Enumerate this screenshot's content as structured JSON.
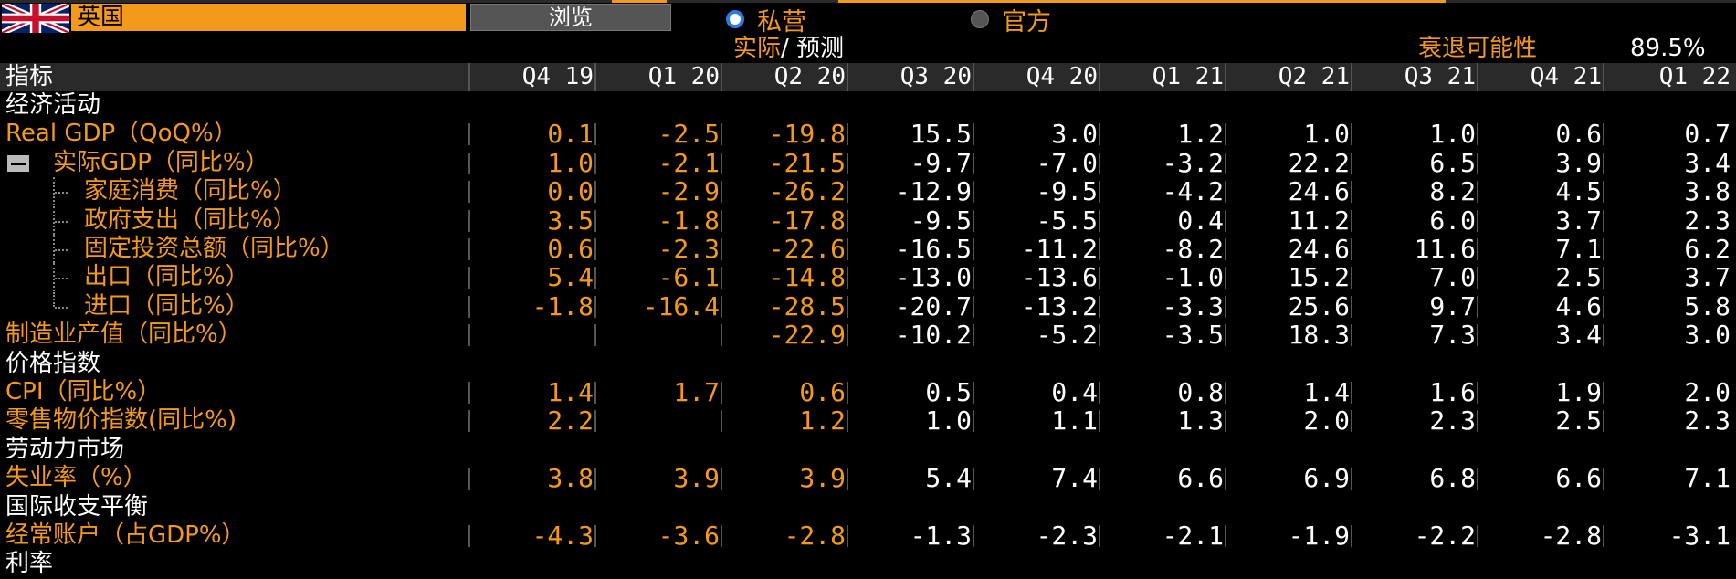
{
  "topbar": {
    "country": "英国",
    "browse_label": "浏览",
    "radio_private": "私营",
    "radio_official": "官方",
    "selected": "私营"
  },
  "subheader": {
    "actual": "实际",
    "slash": "/",
    "forecast": "预测",
    "recession_label": "衰退可能性",
    "recession_value": "89.5%"
  },
  "table": {
    "indicator_header": "指标",
    "columns": [
      "Q4 19",
      "Q1 20",
      "Q2 20",
      "Q3 20",
      "Q4 20",
      "Q1 21",
      "Q2 21",
      "Q3 21",
      "Q4 21",
      "Q1 22"
    ],
    "actual_columns": 3,
    "rows": [
      {
        "type": "section",
        "label": "经济活动"
      },
      {
        "type": "data",
        "label": "Real GDP（QoQ%）",
        "indent": 0,
        "values": [
          "0.1",
          "-2.5",
          "-19.8",
          "15.5",
          "3.0",
          "1.2",
          "1.0",
          "1.0",
          "0.6",
          "0.7"
        ]
      },
      {
        "type": "data",
        "label": "实际GDP（同比%）",
        "indent": 1,
        "collapsible": true,
        "values": [
          "1.0",
          "-2.1",
          "-21.5",
          "-9.7",
          "-7.0",
          "-3.2",
          "22.2",
          "6.5",
          "3.9",
          "3.4"
        ]
      },
      {
        "type": "data",
        "label": "家庭消费（同比%）",
        "indent": 2,
        "values": [
          "0.0",
          "-2.9",
          "-26.2",
          "-12.9",
          "-9.5",
          "-4.2",
          "24.6",
          "8.2",
          "4.5",
          "3.8"
        ]
      },
      {
        "type": "data",
        "label": "政府支出（同比%）",
        "indent": 2,
        "values": [
          "3.5",
          "-1.8",
          "-17.8",
          "-9.5",
          "-5.5",
          "0.4",
          "11.2",
          "6.0",
          "3.7",
          "2.3"
        ]
      },
      {
        "type": "data",
        "label": "固定投资总额（同比%）",
        "indent": 2,
        "values": [
          "0.6",
          "-2.3",
          "-22.6",
          "-16.5",
          "-11.2",
          "-8.2",
          "24.6",
          "11.6",
          "7.1",
          "6.2"
        ]
      },
      {
        "type": "data",
        "label": "出口（同比%）",
        "indent": 2,
        "values": [
          "5.4",
          "-6.1",
          "-14.8",
          "-13.0",
          "-13.6",
          "-1.0",
          "15.2",
          "7.0",
          "2.5",
          "3.7"
        ]
      },
      {
        "type": "data",
        "label": "进口（同比%）",
        "indent": 2,
        "last": true,
        "values": [
          "-1.8",
          "-16.4",
          "-28.5",
          "-20.7",
          "-13.2",
          "-3.3",
          "25.6",
          "9.7",
          "4.6",
          "5.8"
        ]
      },
      {
        "type": "data",
        "label": "制造业产值（同比%）",
        "indent": 0,
        "values": [
          "",
          "",
          "-22.9",
          "-10.2",
          "-5.2",
          "-3.5",
          "18.3",
          "7.3",
          "3.4",
          "3.0"
        ]
      },
      {
        "type": "section",
        "label": "价格指数"
      },
      {
        "type": "data",
        "label": "CPI（同比%）",
        "indent": 0,
        "values": [
          "1.4",
          "1.7",
          "0.6",
          "0.5",
          "0.4",
          "0.8",
          "1.4",
          "1.6",
          "1.9",
          "2.0"
        ]
      },
      {
        "type": "data",
        "label": "零售物价指数(同比%)",
        "indent": 0,
        "values": [
          "2.2",
          "",
          "1.2",
          "1.0",
          "1.1",
          "1.3",
          "2.0",
          "2.3",
          "2.5",
          "2.3"
        ]
      },
      {
        "type": "section",
        "label": "劳动力市场"
      },
      {
        "type": "data",
        "label": "失业率（%）",
        "indent": 0,
        "values": [
          "3.8",
          "3.9",
          "3.9",
          "5.4",
          "7.4",
          "6.6",
          "6.9",
          "6.8",
          "6.6",
          "7.1"
        ]
      },
      {
        "type": "section",
        "label": "国际收支平衡"
      },
      {
        "type": "data",
        "label": "经常账户（占GDP%）",
        "indent": 0,
        "values": [
          "-4.3",
          "-3.6",
          "-2.8",
          "-1.3",
          "-2.3",
          "-2.1",
          "-1.9",
          "-2.2",
          "-2.8",
          "-3.1"
        ]
      },
      {
        "type": "section",
        "label": "利率"
      }
    ]
  },
  "colors": {
    "accent": "#f39a1a",
    "header_bg": "#2a2a2a",
    "background": "#000000"
  }
}
